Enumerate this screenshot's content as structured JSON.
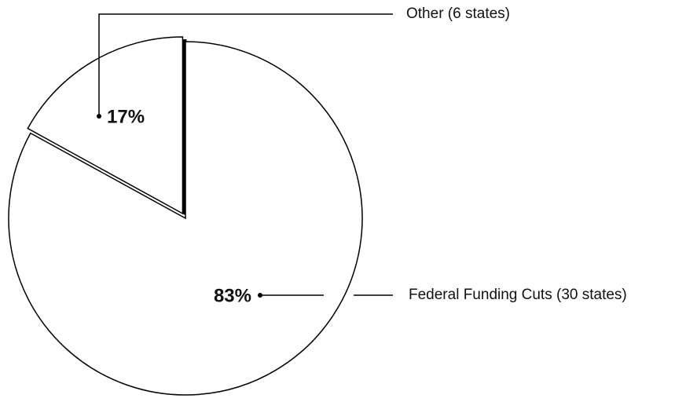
{
  "chart_data": {
    "type": "pie",
    "categories": [
      "Other (6 states)",
      "Federal Funding Cuts (30 states)"
    ],
    "values": [
      17,
      83
    ],
    "value_labels": [
      "17%",
      "83%"
    ],
    "colors": [
      "#ffffff",
      "#ffffff"
    ]
  }
}
